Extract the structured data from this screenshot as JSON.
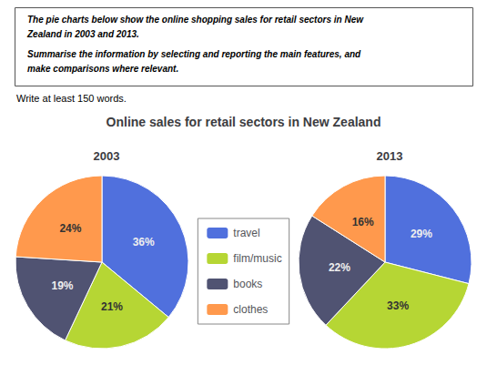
{
  "chart_data": {
    "type": "pie",
    "title": "Online sales for retail sectors in New Zealand",
    "annotations": [
      "The pie charts below show the online shopping sales for retail sectors in New",
      "Zealand in 2003 and 2013.",
      "Summarise the information by selecting and reporting the main features, and",
      "make comparisons where relevant.",
      "Write at least 150 words."
    ],
    "categories": [
      "travel",
      "film/music",
      "books",
      "clothes"
    ],
    "series": [
      {
        "name": "2003",
        "values": [
          36,
          21,
          19,
          24
        ],
        "value_labels": [
          "36%",
          "21%",
          "19%",
          "24%"
        ]
      },
      {
        "name": "2013",
        "values": [
          29,
          33,
          22,
          16
        ],
        "value_labels": [
          "29%",
          "33%",
          "22%",
          "16%"
        ]
      }
    ],
    "data_labels": true,
    "legend": "center"
  }
}
